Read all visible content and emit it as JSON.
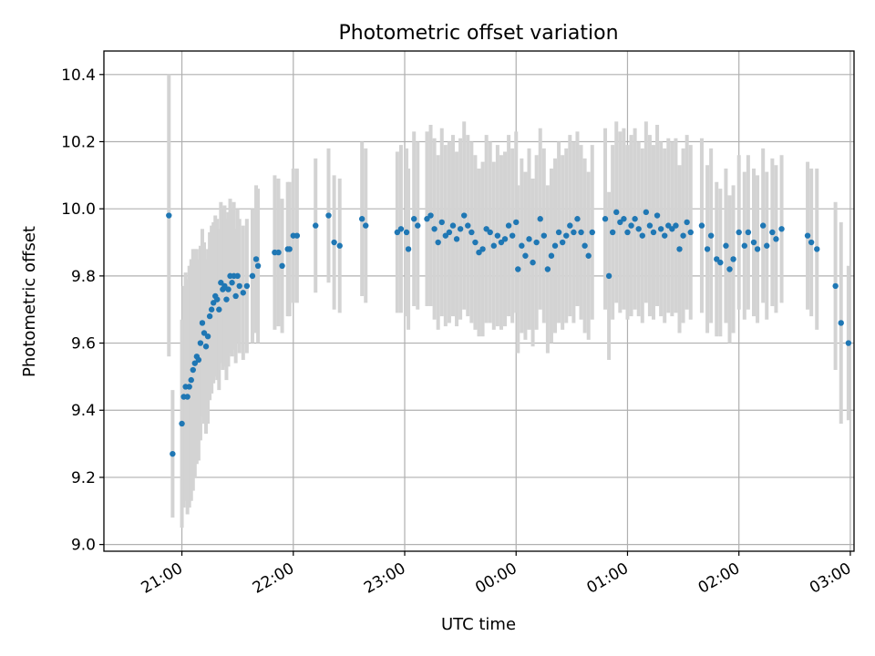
{
  "chart_data": {
    "type": "scatter",
    "title": "Photometric offset variation",
    "xlabel": "UTC time",
    "ylabel": "Photometric offset",
    "x_is_time": true,
    "xlim_minutes_after_2100": [
      -42,
      362
    ],
    "ylim": [
      8.98,
      10.47
    ],
    "x_ticks": [
      "21:00",
      "22:00",
      "23:00",
      "00:00",
      "01:00",
      "02:00",
      "03:00"
    ],
    "y_ticks": [
      9.0,
      9.2,
      9.4,
      9.6,
      9.8,
      10.0,
      10.2,
      10.4
    ],
    "y_tick_labels": [
      "9.0",
      "9.2",
      "9.4",
      "9.6",
      "9.8",
      "10.0",
      "10.2",
      "10.4"
    ],
    "grid": true,
    "marker_color": "#1f77b4",
    "errorbar_color": "#d3d3d3",
    "series": [
      {
        "x": [
          "20:53",
          "20:55",
          "21:00",
          "21:01",
          "21:02",
          "21:03",
          "21:04",
          "21:05",
          "21:06",
          "21:07",
          "21:08",
          "21:09",
          "21:10",
          "21:11",
          "21:12",
          "21:13",
          "21:14",
          "21:15",
          "21:16",
          "21:17",
          "21:18",
          "21:19",
          "21:20",
          "21:21",
          "21:22",
          "21:23",
          "21:24",
          "21:25",
          "21:26",
          "21:27",
          "21:28",
          "21:29",
          "21:30",
          "21:31",
          "21:33",
          "21:35",
          "21:38",
          "21:40",
          "21:41",
          "21:50",
          "21:52",
          "21:54",
          "21:57",
          "21:58",
          "22:00",
          "22:02",
          "22:12",
          "22:19",
          "22:22",
          "22:25",
          "22:37",
          "22:39",
          "22:56",
          "22:58",
          "23:01",
          "23:02",
          "23:05",
          "23:07",
          "23:12",
          "23:14",
          "23:16",
          "23:18",
          "23:20",
          "23:22",
          "23:24",
          "23:26",
          "23:28",
          "23:30",
          "23:32",
          "23:34",
          "23:36",
          "23:38",
          "23:40",
          "23:42",
          "23:44",
          "23:46",
          "23:48",
          "23:50",
          "23:52",
          "23:54",
          "23:56",
          "23:58",
          "00:00",
          "00:01",
          "00:03",
          "00:05",
          "00:07",
          "00:09",
          "00:11",
          "00:13",
          "00:15",
          "00:17",
          "00:19",
          "00:21",
          "00:23",
          "00:25",
          "00:27",
          "00:29",
          "00:31",
          "00:33",
          "00:35",
          "00:37",
          "00:39",
          "00:41",
          "00:48",
          "00:50",
          "00:52",
          "00:54",
          "00:56",
          "00:58",
          "01:00",
          "01:02",
          "01:04",
          "01:06",
          "01:08",
          "01:10",
          "01:12",
          "01:14",
          "01:16",
          "01:18",
          "01:20",
          "01:22",
          "01:24",
          "01:26",
          "01:28",
          "01:30",
          "01:32",
          "01:34",
          "01:40",
          "01:43",
          "01:45",
          "01:48",
          "01:50",
          "01:53",
          "01:55",
          "01:57",
          "02:00",
          "02:03",
          "02:05",
          "02:08",
          "02:10",
          "02:13",
          "02:15",
          "02:18",
          "02:20",
          "02:23",
          "02:37",
          "02:39",
          "02:42",
          "02:52",
          "02:55",
          "02:59"
        ],
        "y": [
          9.98,
          9.27,
          9.36,
          9.44,
          9.47,
          9.44,
          9.47,
          9.49,
          9.52,
          9.54,
          9.56,
          9.55,
          9.6,
          9.66,
          9.63,
          9.59,
          9.62,
          9.68,
          9.7,
          9.72,
          9.74,
          9.73,
          9.7,
          9.78,
          9.76,
          9.77,
          9.73,
          9.76,
          9.8,
          9.78,
          9.8,
          9.74,
          9.8,
          9.77,
          9.75,
          9.77,
          9.8,
          9.85,
          9.83,
          9.87,
          9.87,
          9.83,
          9.88,
          9.88,
          9.92,
          9.92,
          9.95,
          9.98,
          9.9,
          9.89,
          9.97,
          9.95,
          9.93,
          9.94,
          9.93,
          9.88,
          9.97,
          9.95,
          9.97,
          9.98,
          9.94,
          9.9,
          9.96,
          9.92,
          9.93,
          9.95,
          9.91,
          9.94,
          9.98,
          9.95,
          9.93,
          9.9,
          9.87,
          9.88,
          9.94,
          9.93,
          9.89,
          9.92,
          9.9,
          9.91,
          9.95,
          9.92,
          9.96,
          9.82,
          9.89,
          9.86,
          9.91,
          9.84,
          9.9,
          9.97,
          9.92,
          9.82,
          9.86,
          9.89,
          9.93,
          9.9,
          9.92,
          9.95,
          9.93,
          9.97,
          9.93,
          9.89,
          9.86,
          9.93,
          9.97,
          9.8,
          9.93,
          9.99,
          9.96,
          9.97,
          9.93,
          9.95,
          9.97,
          9.94,
          9.92,
          9.99,
          9.95,
          9.93,
          9.98,
          9.94,
          9.92,
          9.95,
          9.94,
          9.95,
          9.88,
          9.92,
          9.96,
          9.93,
          9.95,
          9.88,
          9.92,
          9.85,
          9.84,
          9.89,
          9.82,
          9.85,
          9.93,
          9.89,
          9.93,
          9.9,
          9.88,
          9.95,
          9.89,
          9.93,
          9.91,
          9.94,
          9.92,
          9.9,
          9.88,
          9.77,
          9.66,
          9.6
        ],
        "y_err": [
          0.42,
          0.19,
          0.31,
          0.33,
          0.34,
          0.35,
          0.36,
          0.36,
          0.36,
          0.34,
          0.32,
          0.3,
          0.29,
          0.28,
          0.27,
          0.26,
          0.26,
          0.25,
          0.25,
          0.24,
          0.24,
          0.24,
          0.24,
          0.24,
          0.24,
          0.24,
          0.24,
          0.23,
          0.23,
          0.22,
          0.22,
          0.2,
          0.2,
          0.2,
          0.2,
          0.2,
          0.2,
          0.22,
          0.23,
          0.23,
          0.22,
          0.2,
          0.2,
          0.2,
          0.2,
          0.2,
          0.2,
          0.2,
          0.2,
          0.2,
          0.23,
          0.23,
          0.24,
          0.25,
          0.25,
          0.24,
          0.26,
          0.25,
          0.26,
          0.27,
          0.27,
          0.26,
          0.28,
          0.27,
          0.27,
          0.27,
          0.26,
          0.27,
          0.28,
          0.27,
          0.27,
          0.26,
          0.25,
          0.26,
          0.28,
          0.27,
          0.25,
          0.27,
          0.26,
          0.26,
          0.27,
          0.26,
          0.27,
          0.25,
          0.26,
          0.25,
          0.27,
          0.25,
          0.26,
          0.27,
          0.26,
          0.25,
          0.26,
          0.26,
          0.27,
          0.26,
          0.26,
          0.27,
          0.27,
          0.26,
          0.26,
          0.26,
          0.25,
          0.26,
          0.27,
          0.25,
          0.26,
          0.27,
          0.27,
          0.27,
          0.26,
          0.27,
          0.27,
          0.26,
          0.26,
          0.27,
          0.27,
          0.26,
          0.27,
          0.26,
          0.26,
          0.26,
          0.26,
          0.26,
          0.25,
          0.26,
          0.26,
          0.26,
          0.26,
          0.25,
          0.26,
          0.23,
          0.22,
          0.23,
          0.22,
          0.22,
          0.23,
          0.22,
          0.23,
          0.22,
          0.22,
          0.23,
          0.22,
          0.22,
          0.22,
          0.22,
          0.22,
          0.22,
          0.24,
          0.25,
          0.3,
          0.23
        ]
      }
    ]
  }
}
